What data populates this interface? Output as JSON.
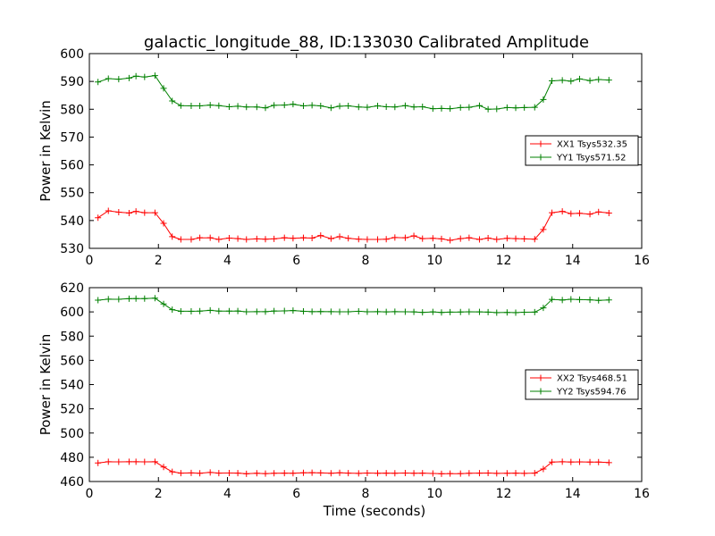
{
  "chart_data": [
    {
      "type": "line",
      "title": "galactic_longitude_88, ID:133030 Calibrated Amplitude",
      "xlabel": "",
      "ylabel": "Power in Kelvin",
      "xlim": [
        0,
        16
      ],
      "ylim": [
        530,
        600
      ],
      "xticks": [
        "0",
        "2",
        "4",
        "6",
        "8",
        "10",
        "12",
        "14",
        "16"
      ],
      "yticks": [
        "530",
        "540",
        "550",
        "560",
        "570",
        "580",
        "590",
        "600"
      ],
      "grid": false,
      "legend_position": "right",
      "x": [
        0.25,
        0.55,
        0.85,
        1.15,
        1.35,
        1.6,
        1.9,
        2.15,
        2.4,
        2.65,
        2.95,
        3.2,
        3.5,
        3.75,
        4.05,
        4.3,
        4.55,
        4.85,
        5.1,
        5.35,
        5.65,
        5.9,
        6.2,
        6.45,
        6.7,
        7.0,
        7.25,
        7.5,
        7.8,
        8.05,
        8.35,
        8.6,
        8.85,
        9.15,
        9.4,
        9.65,
        9.95,
        10.2,
        10.45,
        10.75,
        11.0,
        11.3,
        11.55,
        11.8,
        12.1,
        12.35,
        12.6,
        12.9,
        13.15,
        13.4,
        13.7,
        13.95,
        14.2,
        14.5,
        14.75,
        15.05
      ],
      "series": [
        {
          "name": "XX1 Tsys532.35",
          "color": "#ff0000",
          "values": [
            541.0,
            543.5,
            543.0,
            542.7,
            543.3,
            542.8,
            542.8,
            539.0,
            534.2,
            533.2,
            533.2,
            533.8,
            533.8,
            533.2,
            533.7,
            533.5,
            533.2,
            533.4,
            533.3,
            533.4,
            533.8,
            533.6,
            533.8,
            533.7,
            534.6,
            533.5,
            534.2,
            533.6,
            533.3,
            533.2,
            533.2,
            533.3,
            533.9,
            533.8,
            534.5,
            533.5,
            533.6,
            533.4,
            532.9,
            533.5,
            533.8,
            533.2,
            533.7,
            533.2,
            533.6,
            533.5,
            533.4,
            533.3,
            536.8,
            542.8,
            543.3,
            542.5,
            542.6,
            542.3,
            543.1,
            542.7
          ]
        },
        {
          "name": "YY1 Tsys571.52",
          "color": "#008000",
          "values": [
            589.8,
            591.0,
            590.8,
            591.2,
            591.9,
            591.6,
            592.1,
            587.5,
            583.0,
            581.3,
            581.2,
            581.2,
            581.5,
            581.3,
            580.9,
            581.1,
            580.8,
            580.8,
            580.5,
            581.4,
            581.5,
            581.8,
            581.2,
            581.4,
            581.2,
            580.5,
            581.1,
            581.2,
            580.8,
            580.7,
            581.2,
            580.9,
            580.8,
            581.3,
            580.8,
            580.9,
            580.2,
            580.3,
            580.2,
            580.6,
            580.7,
            581.3,
            580.0,
            580.1,
            580.6,
            580.5,
            580.6,
            580.7,
            583.5,
            590.2,
            590.4,
            590.1,
            590.9,
            590.3,
            590.7,
            590.5
          ]
        }
      ]
    },
    {
      "type": "line",
      "title": "",
      "xlabel": "Time (seconds)",
      "ylabel": "Power in Kelvin",
      "xlim": [
        0,
        16
      ],
      "ylim": [
        460,
        620
      ],
      "xticks": [
        "0",
        "2",
        "4",
        "6",
        "8",
        "10",
        "12",
        "14",
        "16"
      ],
      "yticks": [
        "460",
        "480",
        "500",
        "520",
        "540",
        "560",
        "580",
        "600",
        "620"
      ],
      "grid": false,
      "legend_position": "right",
      "x": [
        0.25,
        0.55,
        0.85,
        1.15,
        1.35,
        1.6,
        1.9,
        2.15,
        2.4,
        2.65,
        2.95,
        3.2,
        3.5,
        3.75,
        4.05,
        4.3,
        4.55,
        4.85,
        5.1,
        5.35,
        5.65,
        5.9,
        6.2,
        6.45,
        6.7,
        7.0,
        7.25,
        7.5,
        7.8,
        8.05,
        8.35,
        8.6,
        8.85,
        9.15,
        9.4,
        9.65,
        9.95,
        10.2,
        10.45,
        10.75,
        11.0,
        11.3,
        11.55,
        11.8,
        12.1,
        12.35,
        12.6,
        12.9,
        13.15,
        13.4,
        13.7,
        13.95,
        14.2,
        14.5,
        14.75,
        15.05
      ],
      "series": [
        {
          "name": "XX2 Tsys468.51",
          "color": "#ff0000",
          "values": [
            475.3,
            476.3,
            476.2,
            476.3,
            476.3,
            476.2,
            476.3,
            472.0,
            468.0,
            466.9,
            467.1,
            466.8,
            467.5,
            466.9,
            467.0,
            466.9,
            466.4,
            466.8,
            466.5,
            466.8,
            466.9,
            466.8,
            467.2,
            467.3,
            467.1,
            466.8,
            467.2,
            466.9,
            466.7,
            467.0,
            466.8,
            466.9,
            466.8,
            467.0,
            466.8,
            466.9,
            466.6,
            466.4,
            466.5,
            466.5,
            466.8,
            466.9,
            467.0,
            466.7,
            466.8,
            466.9,
            466.7,
            466.9,
            470.3,
            476.0,
            476.3,
            476.1,
            476.2,
            476.0,
            476.0,
            475.6
          ]
        },
        {
          "name": "YY2 Tsys594.76",
          "color": "#008000",
          "values": [
            609.7,
            610.5,
            610.4,
            610.9,
            611.0,
            611.0,
            611.3,
            606.5,
            601.8,
            600.5,
            600.5,
            600.6,
            601.3,
            600.6,
            600.6,
            600.7,
            600.1,
            600.2,
            600.2,
            600.7,
            600.8,
            601.1,
            600.5,
            600.2,
            600.3,
            600.2,
            600.1,
            600.1,
            600.5,
            600.1,
            600.2,
            600.0,
            600.2,
            600.1,
            600.0,
            599.6,
            600.0,
            599.5,
            599.8,
            599.9,
            600.1,
            600.0,
            599.8,
            599.4,
            599.5,
            599.4,
            599.7,
            599.8,
            603.3,
            610.3,
            609.8,
            610.4,
            610.1,
            610.0,
            609.5,
            609.9
          ]
        }
      ]
    }
  ]
}
